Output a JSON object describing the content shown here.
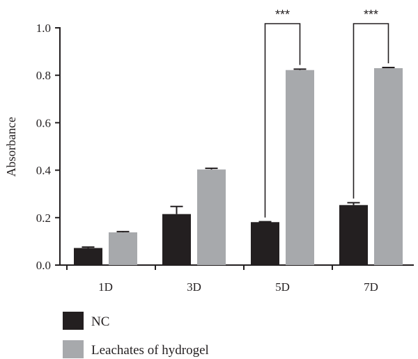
{
  "chart_data": {
    "type": "bar",
    "xlabel": "",
    "ylabel": "Absorbance",
    "ylim": [
      0,
      1.0
    ],
    "yticks": [
      0.0,
      0.2,
      0.4,
      0.6,
      0.8,
      1.0
    ],
    "ytick_labels": [
      "0.0",
      "0.2",
      "0.4",
      "0.6",
      "0.8",
      "1.0"
    ],
    "categories": [
      "1D",
      "3D",
      "5D",
      "7D"
    ],
    "series": [
      {
        "name": "NC",
        "color": "#231f20",
        "values": [
          0.072,
          0.215,
          0.181,
          0.253
        ],
        "errors": [
          0.004,
          0.032,
          0.002,
          0.01
        ]
      },
      {
        "name": "Leachates of hydrogel",
        "color": "#a7a9ac",
        "values": [
          0.138,
          0.403,
          0.822,
          0.83
        ],
        "errors": [
          0.003,
          0.005,
          0.004,
          0.003
        ]
      }
    ],
    "significance": [
      {
        "category": "5D",
        "label": "***"
      },
      {
        "category": "7D",
        "label": "***"
      }
    ],
    "legend_position": "bottom-left",
    "grid": false
  }
}
